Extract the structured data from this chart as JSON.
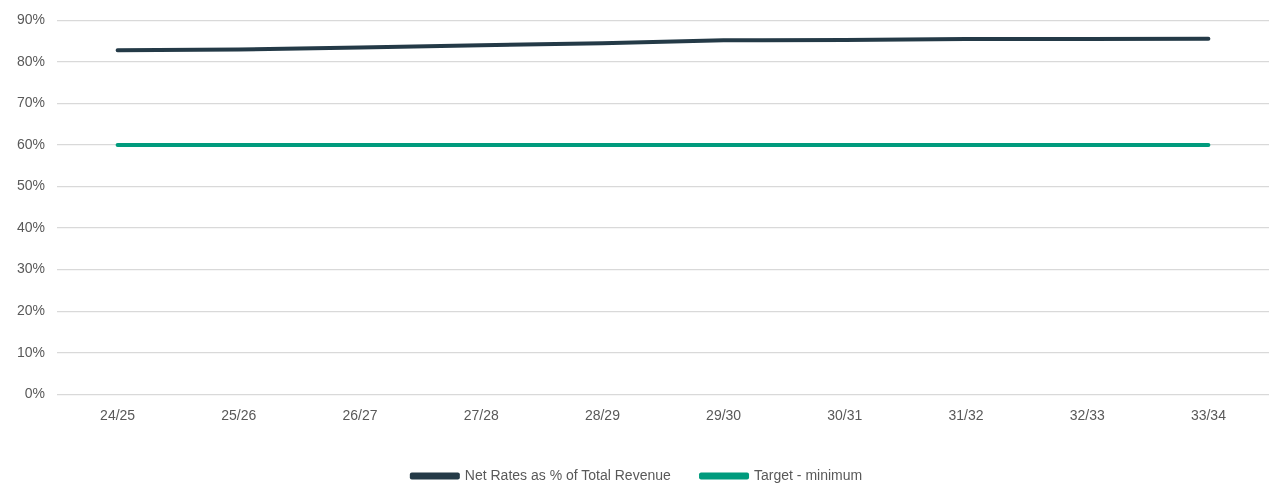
{
  "chart_data": {
    "type": "line",
    "categories": [
      "24/25",
      "25/26",
      "26/27",
      "27/28",
      "28/29",
      "29/30",
      "30/31",
      "31/32",
      "32/33",
      "33/34"
    ],
    "series": [
      {
        "name": "Net Rates as % of Total Revenue",
        "color": "#243a47",
        "values": [
          82.8,
          83.0,
          83.5,
          84.0,
          84.5,
          85.2,
          85.3,
          85.5,
          85.5,
          85.6
        ]
      },
      {
        "name": "Target - minimum",
        "color": "#009b7d",
        "values": [
          60,
          60,
          60,
          60,
          60,
          60,
          60,
          60,
          60,
          60
        ]
      }
    ],
    "ylim": [
      0,
      90
    ],
    "yticks": [
      {
        "value": 0,
        "label": "0%"
      },
      {
        "value": 10,
        "label": "10%"
      },
      {
        "value": 20,
        "label": "20%"
      },
      {
        "value": 30,
        "label": "30%"
      },
      {
        "value": 40,
        "label": "40%"
      },
      {
        "value": 50,
        "label": "50%"
      },
      {
        "value": 60,
        "label": "60%"
      },
      {
        "value": 70,
        "label": "70%"
      },
      {
        "value": 80,
        "label": "80%"
      },
      {
        "value": 90,
        "label": "90%"
      }
    ],
    "grid": "y",
    "legend": "bottom",
    "marker": "none",
    "line_style": "solid"
  }
}
